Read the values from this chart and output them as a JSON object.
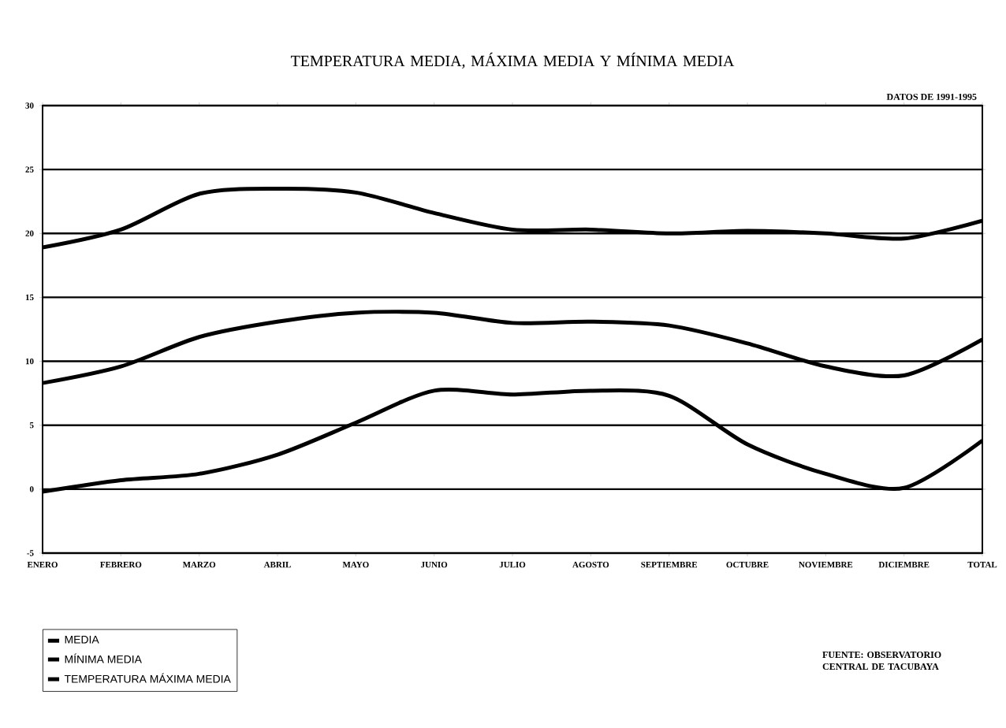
{
  "chart_data": {
    "type": "line",
    "title": "TEMPERATURA MEDIA, MÁXIMA MEDIA Y MÍNIMA MEDIA",
    "categories": [
      "ENERO",
      "FEBRERO",
      "MARZO",
      "ABRIL",
      "MAYO",
      "JUNIO",
      "JULIO",
      "AGOSTO",
      "SEPTIEMBRE",
      "OCTUBRE",
      "NOVIEMBRE",
      "DICIEMBRE",
      "TOTAL"
    ],
    "series": [
      {
        "name": "MEDIA",
        "color": "#000000",
        "values": [
          8.3,
          9.6,
          11.9,
          13.1,
          13.8,
          13.8,
          13.0,
          13.1,
          12.8,
          11.4,
          9.6,
          8.9,
          11.7
        ]
      },
      {
        "name": "MÍNIMA MEDIA",
        "color": "#000000",
        "values": [
          -0.2,
          0.7,
          1.2,
          2.7,
          5.2,
          7.7,
          7.4,
          7.7,
          7.3,
          3.5,
          1.2,
          0.1,
          3.8
        ]
      },
      {
        "name": "TEMPERATURA MÁXIMA MEDIA",
        "color": "#000000",
        "values": [
          18.9,
          20.3,
          23.1,
          23.5,
          23.2,
          21.6,
          20.3,
          20.3,
          20.0,
          20.2,
          20.0,
          19.6,
          21.0
        ]
      }
    ],
    "ylim": [
      -5,
      30
    ],
    "yticks": [
      -5,
      0,
      5,
      10,
      15,
      20,
      25,
      30
    ],
    "grid": "y",
    "legend": "bottom left",
    "marker": "none",
    "line_style": "solid",
    "annotations": [
      "DATOS DE 1991-1995",
      "FUENTE: OBSERVATORIO CENTRAL DE TACUBAYA"
    ]
  }
}
